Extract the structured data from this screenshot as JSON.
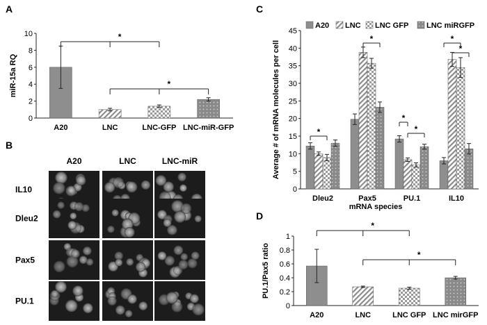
{
  "panels": {
    "a": "A",
    "b": "B",
    "c": "C",
    "d": "D"
  },
  "asterisk": "*",
  "chart_data": [
    {
      "panel": "A",
      "type": "bar",
      "categories": [
        "A20",
        "LNC",
        "LNC-GFP",
        "LNC-miR-GFP"
      ],
      "values": [
        6.0,
        1.0,
        1.4,
        2.2
      ],
      "errors": [
        2.5,
        0.15,
        0.15,
        0.2
      ],
      "patterns": [
        "solid",
        "diag",
        "check",
        "dots"
      ],
      "ylabel": "miR-15a  RQ",
      "ylim": [
        0,
        10
      ],
      "yticks": [
        0,
        2,
        4,
        6,
        8,
        10
      ],
      "significance": [
        {
          "from": 0,
          "to": 2,
          "label": "*"
        },
        {
          "from": 1,
          "to": 3,
          "label": "*"
        }
      ]
    },
    {
      "panel": "C",
      "type": "bar",
      "categories": [
        "Dleu2",
        "Pax5",
        "PU.1",
        "IL10"
      ],
      "series": [
        {
          "name": "A20",
          "pattern": "solid",
          "values": [
            12.2,
            19.8,
            14.2,
            8.0
          ],
          "errors": [
            0.9,
            1.5,
            0.9,
            0.9
          ]
        },
        {
          "name": "LNC",
          "pattern": "diag",
          "values": [
            10.0,
            38.8,
            8.3,
            36.8
          ],
          "errors": [
            0.5,
            1.5,
            0.5,
            2.0
          ]
        },
        {
          "name": "LNC GFP",
          "pattern": "check",
          "values": [
            8.9,
            35.7,
            6.8,
            34.5
          ],
          "errors": [
            0.9,
            1.4,
            0.6,
            2.8
          ]
        },
        {
          "name": "LNC miRGFP",
          "pattern": "dots",
          "values": [
            13.0,
            23.2,
            12.0,
            11.4
          ],
          "errors": [
            0.9,
            1.5,
            0.7,
            1.5
          ]
        }
      ],
      "ylabel": "Average # of mRNA molecules per cell",
      "xlabel": "mRNA species",
      "ylim": [
        0,
        45
      ],
      "yticks": [
        0,
        5,
        10,
        15,
        20,
        25,
        30,
        35,
        40,
        45
      ],
      "legend": "top",
      "significance": [
        {
          "group": 0,
          "from": 0,
          "to": 2,
          "label": "*"
        },
        {
          "group": 1,
          "from": 1,
          "to": 3,
          "label": "*"
        },
        {
          "group": 2,
          "from": 0,
          "to": 1,
          "label": "*"
        },
        {
          "group": 2,
          "from": 1,
          "to": 3,
          "label": "*"
        },
        {
          "group": 3,
          "from": 0,
          "to": 2,
          "label": "*"
        },
        {
          "group": 3,
          "from": 1,
          "to": 3,
          "label": "*"
        }
      ]
    },
    {
      "panel": "D",
      "type": "bar",
      "categories": [
        "A20",
        "LNC",
        "LNC GFP",
        "LNC mirGFP"
      ],
      "values": [
        0.57,
        0.27,
        0.25,
        0.4
      ],
      "errors": [
        0.24,
        0.01,
        0.015,
        0.02
      ],
      "patterns": [
        "solid",
        "diag",
        "check",
        "dots"
      ],
      "ylabel": "PU.1/Pax5 ratio",
      "ylim": [
        0,
        1
      ],
      "yticks": [
        "0",
        "0.2",
        "0.4",
        "0.6",
        "0.8",
        "1"
      ],
      "significance": [
        {
          "from": 0,
          "to": 2,
          "label": "*"
        },
        {
          "from": 1,
          "to": 3,
          "label": "*"
        }
      ]
    }
  ],
  "micrograph": {
    "columns": [
      "A20",
      "LNC",
      "LNC-miR"
    ],
    "rows": [
      "IL10",
      "Dleu2",
      "Pax5",
      "PU.1"
    ]
  }
}
